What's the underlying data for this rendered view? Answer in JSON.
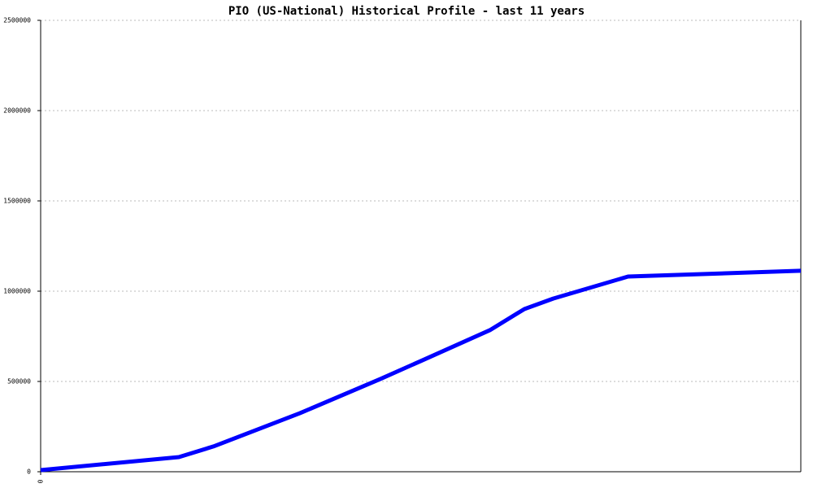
{
  "chart_data": {
    "type": "line",
    "title": "PIO (US-National) Historical Profile - last 11 years",
    "x": [
      0,
      24,
      30,
      45,
      59,
      66,
      78,
      84,
      89,
      102,
      132
    ],
    "series": [
      {
        "color": "#0000ff",
        "values": [
          9000,
          81000,
          140000,
          324000,
          514000,
          613000,
          784000,
          901000,
          959000,
          1081000,
          1113000
        ]
      }
    ],
    "xlim": [
      0,
      132
    ],
    "xticks": [
      0
    ],
    "ylim": [
      0,
      2500000
    ],
    "yticks": [
      0,
      500000,
      1000000,
      1500000,
      2000000,
      2500000
    ],
    "grid": true
  }
}
